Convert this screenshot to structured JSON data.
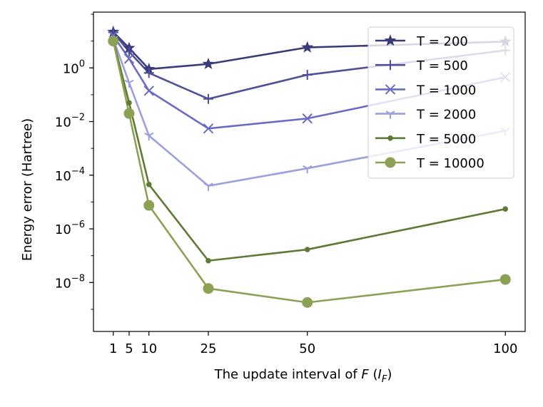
{
  "chart_data": {
    "type": "line",
    "title": "",
    "xlabel_prefix": "The update interval of ",
    "xlabel_var": "F",
    "xlabel_paren_open": " (",
    "xlabel_sym": "I",
    "xlabel_sub": "F",
    "xlabel_paren_close": ")",
    "ylabel": "Energy error (Hartree)",
    "xscale": "linear",
    "yscale": "log",
    "xlim": [
      -4,
      105
    ],
    "ylim": [
      1.5e-10,
      120
    ],
    "x": [
      1,
      5,
      10,
      25,
      50,
      100
    ],
    "xticks": [
      1,
      5,
      10,
      25,
      50,
      100
    ],
    "xtick_labels": [
      "1",
      "5",
      "10",
      "25",
      "50",
      "100"
    ],
    "yticks": [
      1e-08,
      1e-06,
      0.0001,
      0.01,
      1
    ],
    "ytick_base": "10",
    "ytick_exponents": [
      "−8",
      "−6",
      "−4",
      "−2",
      "0"
    ],
    "legend_position": "upper-right",
    "series": [
      {
        "name": "T = 200",
        "color": "#3b3b7a",
        "marker": "star",
        "values": [
          22,
          5.5,
          0.9,
          1.4,
          5.8,
          9.5
        ]
      },
      {
        "name": "T = 500",
        "color": "#4f4f99",
        "marker": "plus",
        "values": [
          21,
          4.0,
          0.65,
          0.07,
          0.55,
          4.5
        ]
      },
      {
        "name": "T = 1000",
        "color": "#6a6bc4",
        "marker": "x",
        "values": [
          16,
          2.2,
          0.14,
          0.0055,
          0.013,
          0.45
        ]
      },
      {
        "name": "T = 2000",
        "color": "#9c9edd",
        "marker": "tri",
        "values": [
          12,
          0.28,
          0.003,
          4e-05,
          0.00018,
          0.0045
        ]
      },
      {
        "name": "T = 5000",
        "color": "#5f7a34",
        "marker": "dot",
        "values": [
          11,
          0.05,
          4.5e-05,
          6.5e-08,
          1.7e-07,
          5.5e-06
        ]
      },
      {
        "name": "T = 10000",
        "color": "#8ca153",
        "marker": "circle",
        "values": [
          10,
          0.02,
          7.5e-06,
          6e-09,
          1.8e-09,
          1.3e-08
        ]
      }
    ]
  }
}
